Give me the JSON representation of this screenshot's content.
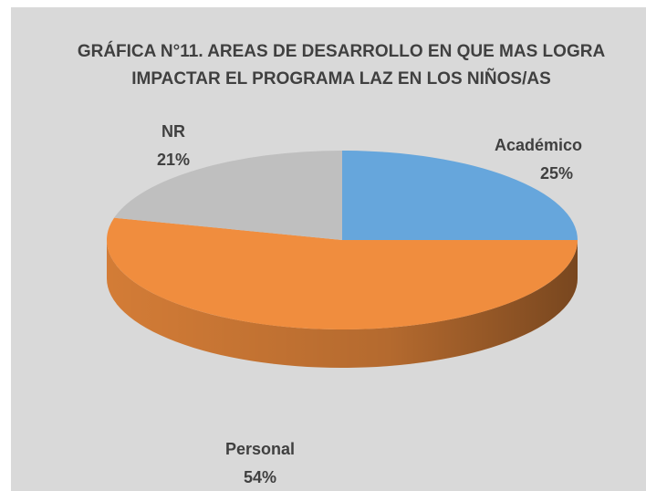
{
  "chart_data": {
    "type": "pie3d",
    "title": [
      "GRÁFICA N°11. AREAS DE DESARROLLO EN QUE MAS LOGRA",
      "IMPACTAR EL PROGRAMA LAZ   EN LOS NIÑOS/AS"
    ],
    "categories": [
      "Académico",
      "Personal",
      "NR"
    ],
    "values": [
      25,
      54,
      21
    ],
    "value_labels": [
      "25%",
      "54%",
      "21%"
    ],
    "colors": [
      "#66a6dc",
      "#f08d3e",
      "#bfbfbf"
    ]
  }
}
